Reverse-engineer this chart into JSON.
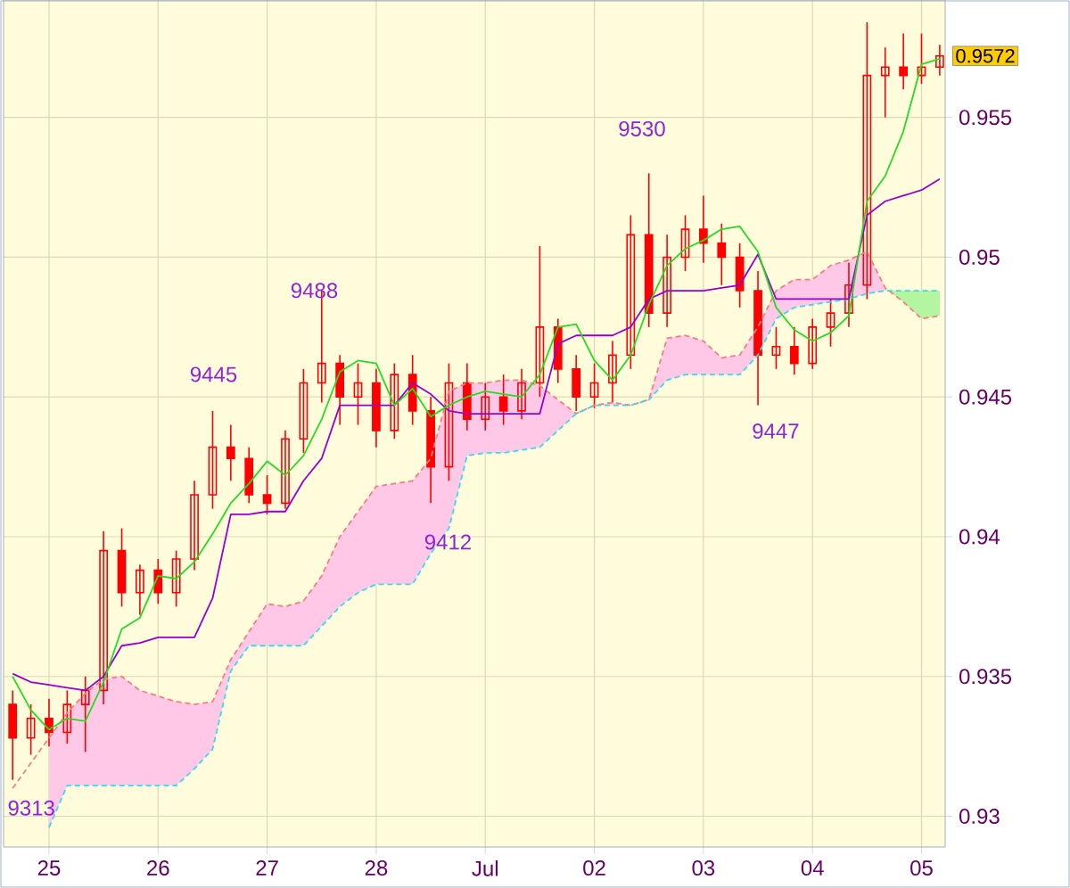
{
  "chart_data": {
    "type": "candlestick",
    "ylim": [
      0.9289,
      0.9592
    ],
    "categories": [
      null,
      null,
      "25",
      null,
      null,
      null,
      null,
      null,
      "26",
      null,
      null,
      null,
      null,
      null,
      "27",
      null,
      null,
      null,
      null,
      null,
      "28",
      null,
      null,
      null,
      null,
      null,
      "Jul",
      null,
      null,
      null,
      null,
      null,
      "02",
      null,
      null,
      null,
      null,
      null,
      "03",
      null,
      null,
      null,
      null,
      null,
      "04",
      null,
      null,
      null,
      null,
      null,
      "05",
      null
    ],
    "yticks": [
      0.93,
      0.935,
      0.94,
      0.945,
      0.95,
      0.955
    ],
    "grid": true,
    "series": [
      {
        "type": "line",
        "color": "#f08080",
        "line_style": "dashed",
        "values": [
          0.931,
          0.9319,
          0.9328,
          0.9337,
          0.9344,
          0.9349,
          0.935,
          0.9345,
          0.9343,
          0.9341,
          0.934,
          0.9341,
          0.9356,
          0.9366,
          0.9376,
          0.9375,
          0.9377,
          0.9386,
          0.94,
          0.9409,
          0.9418,
          0.9419,
          0.942,
          0.9428,
          0.9452,
          0.9455,
          0.9455,
          0.9456,
          0.9456,
          0.9454,
          0.9449,
          0.9444,
          0.9447,
          0.9448,
          0.9447,
          0.9449,
          0.9471,
          0.9472,
          0.947,
          0.9464,
          0.9465,
          0.9475,
          0.9488,
          0.9492,
          0.9492,
          0.9497,
          0.9499,
          0.9502,
          0.9489,
          0.9484,
          0.9478,
          0.9479
        ],
        "upper": [
          null,
          null,
          0.9328,
          0.9337,
          0.9344,
          0.9349,
          0.935,
          0.9345,
          0.9343,
          0.9341,
          0.934,
          0.9341,
          0.9356,
          0.9366,
          0.9376,
          0.9375,
          0.9377,
          0.9386,
          0.94,
          0.9409,
          0.9418,
          0.9419,
          0.942,
          0.9428,
          0.9452,
          0.9455,
          0.9455,
          0.9456,
          0.9456,
          0.9454,
          0.9449,
          0.9444,
          0.9447,
          0.9448,
          0.9447,
          0.9449,
          0.9471,
          0.9472,
          0.947,
          0.9464,
          0.9465,
          0.9475,
          0.9488,
          0.9492,
          0.9492,
          0.9497,
          0.9499,
          0.9502,
          0.9489,
          null,
          null,
          null
        ],
        "lower": [
          null,
          null,
          0.9296,
          0.9311,
          0.9311,
          0.9311,
          0.9311,
          0.9311,
          0.9311,
          0.9311,
          0.9317,
          0.9324,
          0.9352,
          0.9361,
          0.9361,
          0.9361,
          0.9361,
          0.9368,
          0.9375,
          0.938,
          0.9383,
          0.9383,
          0.9383,
          0.9394,
          0.9403,
          0.9429,
          0.943,
          0.943,
          0.9431,
          0.9432,
          0.9438,
          0.9444,
          0.9447,
          0.9447,
          0.9447,
          0.9449,
          0.9456,
          0.9458,
          0.9458,
          0.9458,
          0.9458,
          0.9465,
          0.9478,
          0.9482,
          0.9483,
          0.9484,
          0.9485,
          0.9487,
          0.9488,
          null,
          null,
          null
        ]
      },
      {
        "type": "line",
        "color": "#33ddee",
        "line_style": "dashed",
        "values": [
          null,
          null,
          0.9296,
          0.9311,
          0.9311,
          0.9311,
          0.9311,
          0.9311,
          0.9311,
          0.9311,
          0.9317,
          0.9324,
          0.9352,
          0.9361,
          0.9361,
          0.9361,
          0.9361,
          0.9368,
          0.9375,
          0.938,
          0.9383,
          0.9383,
          0.9383,
          0.9394,
          0.9403,
          0.9429,
          0.943,
          0.943,
          0.9431,
          0.9432,
          0.9438,
          0.9444,
          0.9447,
          0.9447,
          0.9447,
          0.9449,
          0.9456,
          0.9458,
          0.9458,
          0.9458,
          0.9458,
          0.9465,
          0.9478,
          0.9482,
          0.9483,
          0.9484,
          0.9485,
          0.9487,
          0.9488,
          0.9488,
          0.9488,
          0.9488
        ],
        "upper": [
          null,
          null,
          null,
          null,
          null,
          null,
          null,
          null,
          null,
          null,
          null,
          null,
          null,
          null,
          null,
          null,
          null,
          null,
          null,
          null,
          null,
          null,
          null,
          null,
          null,
          null,
          null,
          null,
          null,
          null,
          null,
          null,
          null,
          null,
          null,
          null,
          null,
          null,
          null,
          null,
          null,
          null,
          null,
          null,
          null,
          null,
          null,
          null,
          0.9488,
          0.9488,
          0.9488,
          0.9488
        ],
        "lower": [
          null,
          null,
          null,
          null,
          null,
          null,
          null,
          null,
          null,
          null,
          null,
          null,
          null,
          null,
          null,
          null,
          null,
          null,
          null,
          null,
          null,
          null,
          null,
          null,
          null,
          null,
          null,
          null,
          null,
          null,
          null,
          null,
          null,
          null,
          null,
          null,
          null,
          null,
          null,
          null,
          null,
          null,
          null,
          null,
          null,
          null,
          null,
          null,
          0.9489,
          0.9484,
          0.9478,
          0.9479
        ]
      },
      {
        "type": "line",
        "color": "#9900cc",
        "values": [
          0.9351,
          0.9348,
          0.9347,
          0.9346,
          0.9345,
          0.935,
          0.9361,
          0.9362,
          0.9364,
          0.9364,
          0.9364,
          0.9378,
          0.9408,
          0.9408,
          0.9409,
          0.9409,
          0.942,
          0.9428,
          0.9447,
          0.9447,
          0.9447,
          0.9447,
          0.9455,
          0.9451,
          0.9445,
          0.9444,
          0.9444,
          0.9444,
          0.9444,
          0.9444,
          0.9469,
          0.9472,
          0.9472,
          0.9472,
          0.9475,
          0.9485,
          0.9488,
          0.9488,
          0.9488,
          0.9489,
          0.949,
          0.9501,
          0.9485,
          0.9485,
          0.9485,
          0.9485,
          0.9485,
          0.9515,
          0.952,
          0.9522,
          0.9524,
          0.9528
        ]
      },
      {
        "type": "line",
        "color": "#22dd22",
        "values": [
          0.935,
          0.9338,
          0.9331,
          0.9335,
          0.9334,
          0.9348,
          0.9367,
          0.9371,
          0.9386,
          0.9385,
          0.9391,
          0.9401,
          0.9412,
          0.9419,
          0.9427,
          0.9422,
          0.9429,
          0.9442,
          0.9459,
          0.9463,
          0.9462,
          0.9447,
          0.9453,
          0.9443,
          0.9447,
          0.945,
          0.9452,
          0.9451,
          0.945,
          0.9458,
          0.9475,
          0.9476,
          0.9463,
          0.9456,
          0.9465,
          0.9483,
          0.9497,
          0.9503,
          0.9506,
          0.951,
          0.9511,
          0.9502,
          0.9482,
          0.9474,
          0.947,
          0.9473,
          0.9479,
          0.952,
          0.9529,
          0.9545,
          0.9569,
          0.9571
        ]
      },
      {
        "color": "#ff0000",
        "ohlc": [
          [
            0.934,
            0.9345,
            0.9313,
            0.9328
          ],
          [
            0.9328,
            0.934,
            0.9322,
            0.9335
          ],
          [
            0.9335,
            0.9342,
            0.9325,
            0.933
          ],
          [
            0.933,
            0.9345,
            0.9326,
            0.934
          ],
          [
            0.934,
            0.935,
            0.9323,
            0.9345
          ],
          [
            0.9345,
            0.9402,
            0.934,
            0.9395
          ],
          [
            0.9395,
            0.9403,
            0.9375,
            0.938
          ],
          [
            0.938,
            0.939,
            0.9372,
            0.9388
          ],
          [
            0.9388,
            0.9392,
            0.9376,
            0.938
          ],
          [
            0.938,
            0.9395,
            0.9375,
            0.9392
          ],
          [
            0.9392,
            0.942,
            0.9388,
            0.9415
          ],
          [
            0.9415,
            0.9445,
            0.941,
            0.9432
          ],
          [
            0.9432,
            0.944,
            0.942,
            0.9428
          ],
          [
            0.9428,
            0.9432,
            0.9412,
            0.9415
          ],
          [
            0.9415,
            0.9422,
            0.9408,
            0.9412
          ],
          [
            0.9412,
            0.9438,
            0.941,
            0.9435
          ],
          [
            0.9435,
            0.946,
            0.943,
            0.9455
          ],
          [
            0.9455,
            0.9488,
            0.9448,
            0.9462
          ],
          [
            0.9462,
            0.9465,
            0.944,
            0.945
          ],
          [
            0.945,
            0.9462,
            0.944,
            0.9455
          ],
          [
            0.9455,
            0.946,
            0.9432,
            0.9438
          ],
          [
            0.9438,
            0.9462,
            0.9435,
            0.9458
          ],
          [
            0.9458,
            0.9465,
            0.944,
            0.9445
          ],
          [
            0.9445,
            0.945,
            0.9412,
            0.9425
          ],
          [
            0.9425,
            0.9462,
            0.942,
            0.9455
          ],
          [
            0.9455,
            0.9462,
            0.9438,
            0.9442
          ],
          [
            0.9442,
            0.9455,
            0.9438,
            0.945
          ],
          [
            0.945,
            0.9458,
            0.944,
            0.9445
          ],
          [
            0.9445,
            0.946,
            0.9442,
            0.9455
          ],
          [
            0.9455,
            0.9504,
            0.945,
            0.9475
          ],
          [
            0.9475,
            0.9478,
            0.9455,
            0.946
          ],
          [
            0.946,
            0.9465,
            0.9445,
            0.945
          ],
          [
            0.945,
            0.9462,
            0.9446,
            0.9455
          ],
          [
            0.9455,
            0.947,
            0.9448,
            0.9465
          ],
          [
            0.9465,
            0.9515,
            0.946,
            0.9508
          ],
          [
            0.9508,
            0.953,
            0.9475,
            0.948
          ],
          [
            0.948,
            0.9508,
            0.9475,
            0.95
          ],
          [
            0.95,
            0.9515,
            0.9495,
            0.951
          ],
          [
            0.951,
            0.9522,
            0.9498,
            0.9505
          ],
          [
            0.9505,
            0.9512,
            0.949,
            0.95
          ],
          [
            0.95,
            0.9505,
            0.9482,
            0.9488
          ],
          [
            0.9488,
            0.9495,
            0.9447,
            0.9465
          ],
          [
            0.9465,
            0.9475,
            0.946,
            0.9468
          ],
          [
            0.9468,
            0.9475,
            0.9458,
            0.9462
          ],
          [
            0.9462,
            0.9478,
            0.946,
            0.9475
          ],
          [
            0.9475,
            0.9485,
            0.9468,
            0.948
          ],
          [
            0.948,
            0.9498,
            0.9475,
            0.949
          ],
          [
            0.949,
            0.9584,
            0.9485,
            0.9565
          ],
          [
            0.9565,
            0.9575,
            0.955,
            0.9568
          ],
          [
            0.9568,
            0.958,
            0.956,
            0.9565
          ],
          [
            0.9565,
            0.958,
            0.9562,
            0.9568
          ],
          [
            0.9568,
            0.9576,
            0.9565,
            0.9572
          ]
        ]
      }
    ],
    "annotations": [
      "9313",
      "9445",
      "9488",
      "9412",
      "9530",
      "9447",
      "0.9572"
    ]
  }
}
